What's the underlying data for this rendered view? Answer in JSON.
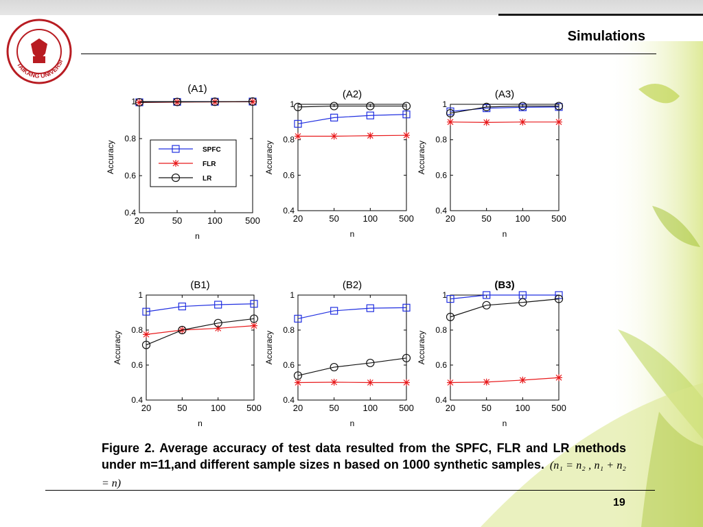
{
  "slide": {
    "title": "Simulations",
    "caption": "Figure 2. Average accuracy of test data resulted from the SPFC, FLR and LR methods under m=11,and different sample sizes n based on 1000 synthetic samples.",
    "formula": "(n₁ = n₂ , n₁ + n₂ = n)",
    "page_number": "19",
    "logo_text": "TAIKANG UNIVERSITY"
  },
  "colors": {
    "SPFC": "#1f2ee0",
    "FLR": "#e8191b",
    "LR": "#111111"
  },
  "chart_data": [
    {
      "type": "line",
      "title": "(A1)",
      "xlabel": "n",
      "ylabel": "Accuracy",
      "categories": [
        "20",
        "50",
        "100",
        "500"
      ],
      "ylim": [
        0.4,
        1
      ],
      "yticks": [
        "0.4",
        "0.6",
        "0.8",
        "1"
      ],
      "legend": "inside-left",
      "series": [
        {
          "name": "SPFC",
          "marker": "square",
          "values": [
            0.996,
            0.998,
            0.999,
            1.0
          ]
        },
        {
          "name": "FLR",
          "marker": "asterisk",
          "values": [
            0.995,
            0.997,
            0.998,
            0.999
          ]
        },
        {
          "name": "LR",
          "marker": "circle",
          "values": [
            0.996,
            0.998,
            0.999,
            1.0
          ]
        }
      ]
    },
    {
      "type": "line",
      "title": "(A2)",
      "xlabel": "n",
      "ylabel": "Accuracy",
      "categories": [
        "20",
        "50",
        "100",
        "500"
      ],
      "ylim": [
        0.4,
        1
      ],
      "yticks": [
        "0.4",
        "0.6",
        "0.8",
        "1"
      ],
      "series": [
        {
          "name": "SPFC",
          "marker": "square",
          "values": [
            0.89,
            0.925,
            0.937,
            0.943
          ]
        },
        {
          "name": "FLR",
          "marker": "asterisk",
          "values": [
            0.82,
            0.82,
            0.823,
            0.825
          ]
        },
        {
          "name": "LR",
          "marker": "circle",
          "values": [
            0.985,
            0.99,
            0.99,
            0.99
          ]
        }
      ]
    },
    {
      "type": "line",
      "title": "(A3)",
      "xlabel": "n",
      "ylabel": "Accuracy",
      "categories": [
        "20",
        "50",
        "100",
        "500"
      ],
      "ylim": [
        0.4,
        1
      ],
      "yticks": [
        "0.4",
        "0.6",
        "0.8",
        "1"
      ],
      "series": [
        {
          "name": "SPFC",
          "marker": "square",
          "values": [
            0.96,
            0.978,
            0.983,
            0.985
          ]
        },
        {
          "name": "FLR",
          "marker": "asterisk",
          "values": [
            0.9,
            0.898,
            0.9,
            0.9
          ]
        },
        {
          "name": "LR",
          "marker": "circle",
          "values": [
            0.95,
            0.985,
            0.99,
            0.99
          ]
        }
      ]
    },
    {
      "type": "line",
      "title": "(B1)",
      "xlabel": "n",
      "ylabel": "Accuracy",
      "categories": [
        "20",
        "50",
        "100",
        "500"
      ],
      "ylim": [
        0.4,
        1
      ],
      "yticks": [
        "0.4",
        "0.6",
        "0.8",
        "1"
      ],
      "series": [
        {
          "name": "SPFC",
          "marker": "square",
          "values": [
            0.905,
            0.935,
            0.945,
            0.95
          ]
        },
        {
          "name": "FLR",
          "marker": "asterisk",
          "values": [
            0.775,
            0.8,
            0.81,
            0.825
          ]
        },
        {
          "name": "LR",
          "marker": "circle",
          "values": [
            0.715,
            0.8,
            0.84,
            0.865
          ]
        }
      ]
    },
    {
      "type": "line",
      "title": "(B2)",
      "xlabel": "n",
      "ylabel": "Accuracy",
      "categories": [
        "20",
        "50",
        "100",
        "500"
      ],
      "ylim": [
        0.4,
        1
      ],
      "yticks": [
        "0.4",
        "0.6",
        "0.8",
        "1"
      ],
      "series": [
        {
          "name": "SPFC",
          "marker": "square",
          "values": [
            0.865,
            0.91,
            0.925,
            0.928
          ]
        },
        {
          "name": "FLR",
          "marker": "asterisk",
          "values": [
            0.5,
            0.502,
            0.5,
            0.5
          ]
        },
        {
          "name": "LR",
          "marker": "circle",
          "values": [
            0.54,
            0.588,
            0.612,
            0.64
          ]
        }
      ]
    },
    {
      "type": "line",
      "title": "(B3)",
      "xlabel": "n",
      "ylabel": "Accuracy",
      "categories": [
        "20",
        "50",
        "100",
        "500"
      ],
      "ylim": [
        0.4,
        1
      ],
      "yticks": [
        "0.4",
        "0.6",
        "0.8",
        "1"
      ],
      "series": [
        {
          "name": "SPFC",
          "marker": "square",
          "values": [
            0.978,
            1.0,
            1.0,
            1.0
          ]
        },
        {
          "name": "FLR",
          "marker": "asterisk",
          "values": [
            0.5,
            0.503,
            0.514,
            0.528
          ]
        },
        {
          "name": "LR",
          "marker": "circle",
          "values": [
            0.875,
            0.942,
            0.958,
            0.978
          ]
        }
      ]
    }
  ]
}
